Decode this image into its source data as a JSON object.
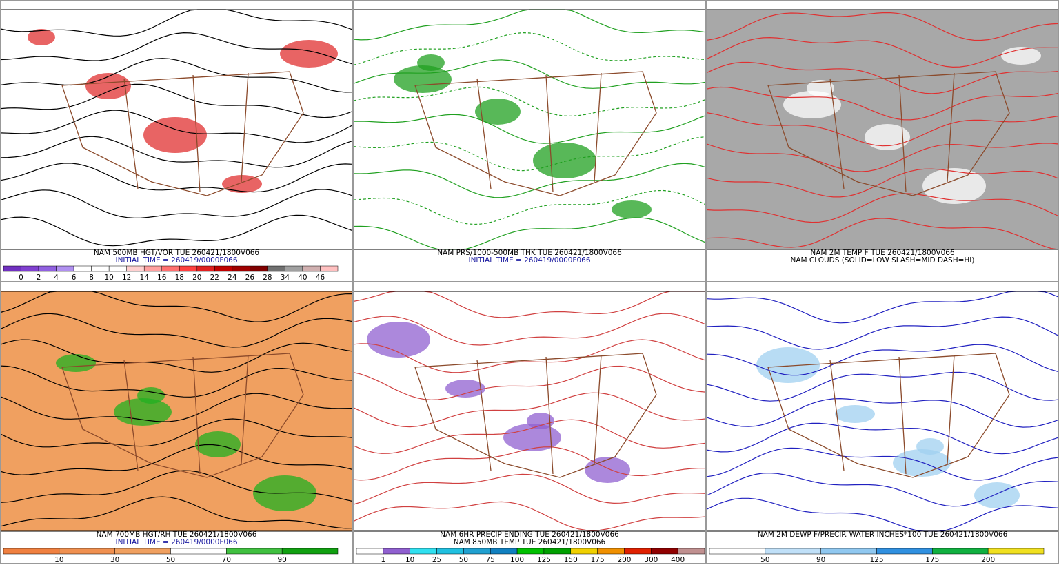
{
  "panels": [
    {
      "captions": [
        "NAM 500MB HGT/VOR TUE 260421/1800V066",
        "INITIAL TIME = 260419/0000F066"
      ],
      "colorbar": {
        "labels": [
          "0",
          "2",
          "4",
          "6",
          "8",
          "10",
          "12",
          "14",
          "16",
          "18",
          "20",
          "22",
          "24",
          "26",
          "28",
          "34",
          "40",
          "46"
        ],
        "colors": [
          "#7030c0",
          "#8040d0",
          "#9060e0",
          "#b090f0",
          "#ffffff",
          "#ffffff",
          "#ffffff",
          "#ffd0d0",
          "#ffa0a0",
          "#ff7070",
          "#ff4040",
          "#e02020",
          "#c00000",
          "#a00000",
          "#800000",
          "#707070",
          "#a0a0a0",
          "#d0b0b0",
          "#ffc0c0"
        ]
      }
    },
    {
      "captions": [
        "NAM PRS/1000-500MB THK TUE 260421/1800V066",
        "INITIAL TIME = 260419/0000F066"
      ]
    },
    {
      "captions": [
        "NAM 2M TEMP F TUE 260421/1800V066",
        "NAM CLOUDS (SOLID=LOW SLASH=MID DASH=HI)"
      ]
    },
    {
      "captions": [
        "NAM 700MB HGT/RH TUE 260421/1800V066",
        "INITIAL TIME = 260419/0000F066"
      ],
      "colorbar": {
        "labels": [
          "10",
          "30",
          "50",
          "70",
          "90"
        ],
        "colors": [
          "#f08040",
          "#f09050",
          "#f0a060",
          "#ffffff",
          "#40c040",
          "#10a010"
        ]
      }
    },
    {
      "captions": [
        "NAM 6HR PRECIP ENDING TUE 260421/1800V066",
        "NAM 850MB TEMP TUE 260421/1800V066"
      ],
      "colorbar": {
        "labels": [
          "1",
          "10",
          "25",
          "50",
          "75",
          "100",
          "125",
          "150",
          "175",
          "200",
          "300",
          "400"
        ],
        "colors": [
          "#ffffff",
          "#9060d0",
          "#30e0f0",
          "#20c0e0",
          "#20a0d0",
          "#1080c0",
          "#00c000",
          "#00a000",
          "#f0d000",
          "#f09000",
          "#e02000",
          "#900000",
          "#c09090"
        ]
      }
    },
    {
      "captions": [
        "NAM 2M DEWP F/PRECIP. WATER INCHES*100 TUE 260421/1800V066"
      ],
      "colorbar": {
        "labels": [
          "50",
          "90",
          "125",
          "175",
          "200"
        ],
        "colors": [
          "#ffffff",
          "#c0e0f8",
          "#90c8f0",
          "#3090e0",
          "#10b040",
          "#f0e020"
        ]
      }
    }
  ]
}
